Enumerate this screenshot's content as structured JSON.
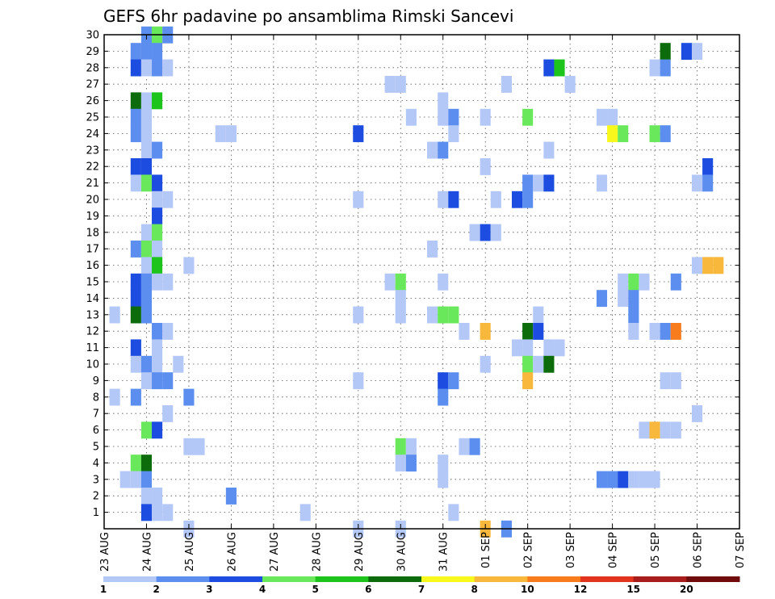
{
  "chart_data": {
    "type": "heatmap",
    "title": "GEFS 6hr padavine po ansamblima Rimski Sancevi",
    "xlabel": "",
    "ylabel": "",
    "x_range": [
      "2008-08-23 00",
      "2008-09-07 00"
    ],
    "x_step_hours": 6,
    "x_tick_labels": [
      "23 AUG",
      "24 AUG",
      "25 AUG",
      "26 AUG",
      "27 AUG",
      "28 AUG",
      "29 AUG",
      "30 AUG",
      "31 AUG",
      "01 SEP",
      "02 SEP",
      "03 SEP",
      "04 SEP",
      "05 SEP",
      "06 SEP",
      "07 SEP"
    ],
    "y_tick_labels": [
      "1",
      "2",
      "3",
      "4",
      "5",
      "6",
      "7",
      "8",
      "9",
      "10",
      "11",
      "12",
      "13",
      "14",
      "15",
      "16",
      "17",
      "18",
      "19",
      "20",
      "21",
      "22",
      "23",
      "24",
      "25",
      "26",
      "27",
      "28",
      "29",
      "30"
    ],
    "y_range": [
      0,
      30
    ],
    "grid": true,
    "colorbar": {
      "labels": [
        "1",
        "2",
        "3",
        "4",
        "5",
        "6",
        "7",
        "8",
        "10",
        "12",
        "15",
        "20"
      ],
      "colors": [
        "#b4c8f8",
        "#5c8ef0",
        "#1c4ce0",
        "#6ae85c",
        "#1cc41c",
        "#0c6c0c",
        "#f8f81c",
        "#f8b83c",
        "#f87c1c",
        "#e0341c",
        "#a81c1c",
        "#700c0c"
      ]
    },
    "cells": [
      {
        "t": "2008-08-23 06",
        "m": 13,
        "c": 1
      },
      {
        "t": "2008-08-23 06",
        "m": 8,
        "c": 1
      },
      {
        "t": "2008-08-23 12",
        "m": 3,
        "c": 1
      },
      {
        "t": "2008-08-23 18",
        "m": 29,
        "c": 2
      },
      {
        "t": "2008-08-23 18",
        "m": 28,
        "c": 3
      },
      {
        "t": "2008-08-23 18",
        "m": 26,
        "c": 6
      },
      {
        "t": "2008-08-23 18",
        "m": 25,
        "c": 2
      },
      {
        "t": "2008-08-23 18",
        "m": 24,
        "c": 2
      },
      {
        "t": "2008-08-23 18",
        "m": 22,
        "c": 3
      },
      {
        "t": "2008-08-23 18",
        "m": 21,
        "c": 1
      },
      {
        "t": "2008-08-23 18",
        "m": 17,
        "c": 2
      },
      {
        "t": "2008-08-23 18",
        "m": 15,
        "c": 3
      },
      {
        "t": "2008-08-23 18",
        "m": 14,
        "c": 3
      },
      {
        "t": "2008-08-23 18",
        "m": 13,
        "c": 6
      },
      {
        "t": "2008-08-23 18",
        "m": 11,
        "c": 3
      },
      {
        "t": "2008-08-23 18",
        "m": 10,
        "c": 1
      },
      {
        "t": "2008-08-23 18",
        "m": 8,
        "c": 2
      },
      {
        "t": "2008-08-23 18",
        "m": 4,
        "c": 4
      },
      {
        "t": "2008-08-23 18",
        "m": 3,
        "c": 1
      },
      {
        "t": "2008-08-24 00",
        "m": 30,
        "c": 2
      },
      {
        "t": "2008-08-24 00",
        "m": 29,
        "c": 2
      },
      {
        "t": "2008-08-24 00",
        "m": 28,
        "c": 1
      },
      {
        "t": "2008-08-24 00",
        "m": 26,
        "c": 1
      },
      {
        "t": "2008-08-24 00",
        "m": 25,
        "c": 1
      },
      {
        "t": "2008-08-24 00",
        "m": 24,
        "c": 1
      },
      {
        "t": "2008-08-24 00",
        "m": 23,
        "c": 1
      },
      {
        "t": "2008-08-24 00",
        "m": 22,
        "c": 3
      },
      {
        "t": "2008-08-24 00",
        "m": 21,
        "c": 4
      },
      {
        "t": "2008-08-24 00",
        "m": 18,
        "c": 1
      },
      {
        "t": "2008-08-24 00",
        "m": 17,
        "c": 4
      },
      {
        "t": "2008-08-24 00",
        "m": 16,
        "c": 1
      },
      {
        "t": "2008-08-24 00",
        "m": 15,
        "c": 2
      },
      {
        "t": "2008-08-24 00",
        "m": 14,
        "c": 2
      },
      {
        "t": "2008-08-24 00",
        "m": 13,
        "c": 2
      },
      {
        "t": "2008-08-24 00",
        "m": 10,
        "c": 2
      },
      {
        "t": "2008-08-24 00",
        "m": 9,
        "c": 1
      },
      {
        "t": "2008-08-24 00",
        "m": 6,
        "c": 4
      },
      {
        "t": "2008-08-24 00",
        "m": 4,
        "c": 6
      },
      {
        "t": "2008-08-24 00",
        "m": 3,
        "c": 2
      },
      {
        "t": "2008-08-24 00",
        "m": 2,
        "c": 1
      },
      {
        "t": "2008-08-24 00",
        "m": 1,
        "c": 3
      },
      {
        "t": "2008-08-24 06",
        "m": 30,
        "c": 4
      },
      {
        "t": "2008-08-24 06",
        "m": 29,
        "c": 2
      },
      {
        "t": "2008-08-24 06",
        "m": 28,
        "c": 2
      },
      {
        "t": "2008-08-24 06",
        "m": 26,
        "c": 5
      },
      {
        "t": "2008-08-24 06",
        "m": 23,
        "c": 2
      },
      {
        "t": "2008-08-24 06",
        "m": 21,
        "c": 3
      },
      {
        "t": "2008-08-24 06",
        "m": 20,
        "c": 1
      },
      {
        "t": "2008-08-24 06",
        "m": 19,
        "c": 3
      },
      {
        "t": "2008-08-24 06",
        "m": 18,
        "c": 4
      },
      {
        "t": "2008-08-24 06",
        "m": 17,
        "c": 1
      },
      {
        "t": "2008-08-24 06",
        "m": 16,
        "c": 5
      },
      {
        "t": "2008-08-24 06",
        "m": 15,
        "c": 1
      },
      {
        "t": "2008-08-24 06",
        "m": 12,
        "c": 2
      },
      {
        "t": "2008-08-24 06",
        "m": 11,
        "c": 1
      },
      {
        "t": "2008-08-24 06",
        "m": 10,
        "c": 1
      },
      {
        "t": "2008-08-24 06",
        "m": 9,
        "c": 2
      },
      {
        "t": "2008-08-24 06",
        "m": 6,
        "c": 3
      },
      {
        "t": "2008-08-24 06",
        "m": 2,
        "c": 1
      },
      {
        "t": "2008-08-24 06",
        "m": 1,
        "c": 1
      },
      {
        "t": "2008-08-24 12",
        "m": 30,
        "c": 2
      },
      {
        "t": "2008-08-24 12",
        "m": 28,
        "c": 1
      },
      {
        "t": "2008-08-24 12",
        "m": 20,
        "c": 1
      },
      {
        "t": "2008-08-24 12",
        "m": 15,
        "c": 1
      },
      {
        "t": "2008-08-24 12",
        "m": 12,
        "c": 1
      },
      {
        "t": "2008-08-24 12",
        "m": 9,
        "c": 2
      },
      {
        "t": "2008-08-24 12",
        "m": 7,
        "c": 1
      },
      {
        "t": "2008-08-24 12",
        "m": 1,
        "c": 1
      },
      {
        "t": "2008-08-24 18",
        "m": 10,
        "c": 1
      },
      {
        "t": "2008-08-25 00",
        "m": 16,
        "c": 1
      },
      {
        "t": "2008-08-25 00",
        "m": 8,
        "c": 2
      },
      {
        "t": "2008-08-25 00",
        "m": 5,
        "c": 1
      },
      {
        "t": "2008-08-25 00",
        "m": 0,
        "c": 1
      },
      {
        "t": "2008-08-25 06",
        "m": 5,
        "c": 1
      },
      {
        "t": "2008-08-25 18",
        "m": 24,
        "c": 1
      },
      {
        "t": "2008-08-26 00",
        "m": 24,
        "c": 1
      },
      {
        "t": "2008-08-26 00",
        "m": 2,
        "c": 2
      },
      {
        "t": "2008-08-27 18",
        "m": 1,
        "c": 1
      },
      {
        "t": "2008-08-29 00",
        "m": 24,
        "c": 3
      },
      {
        "t": "2008-08-29 00",
        "m": 20,
        "c": 1
      },
      {
        "t": "2008-08-29 00",
        "m": 13,
        "c": 1
      },
      {
        "t": "2008-08-29 00",
        "m": 9,
        "c": 1
      },
      {
        "t": "2008-08-29 00",
        "m": 0,
        "c": 1
      },
      {
        "t": "2008-08-29 18",
        "m": 27,
        "c": 1
      },
      {
        "t": "2008-08-29 18",
        "m": 15,
        "c": 1
      },
      {
        "t": "2008-08-30 00",
        "m": 27,
        "c": 1
      },
      {
        "t": "2008-08-30 00",
        "m": 15,
        "c": 4
      },
      {
        "t": "2008-08-30 00",
        "m": 14,
        "c": 1
      },
      {
        "t": "2008-08-30 00",
        "m": 13,
        "c": 1
      },
      {
        "t": "2008-08-30 00",
        "m": 5,
        "c": 4
      },
      {
        "t": "2008-08-30 00",
        "m": 4,
        "c": 1
      },
      {
        "t": "2008-08-30 00",
        "m": 0,
        "c": 1
      },
      {
        "t": "2008-08-30 06",
        "m": 25,
        "c": 1
      },
      {
        "t": "2008-08-30 06",
        "m": 5,
        "c": 1
      },
      {
        "t": "2008-08-30 06",
        "m": 4,
        "c": 2
      },
      {
        "t": "2008-08-30 18",
        "m": 23,
        "c": 1
      },
      {
        "t": "2008-08-30 18",
        "m": 17,
        "c": 1
      },
      {
        "t": "2008-08-30 18",
        "m": 13,
        "c": 1
      },
      {
        "t": "2008-08-31 00",
        "m": 26,
        "c": 1
      },
      {
        "t": "2008-08-31 00",
        "m": 25,
        "c": 1
      },
      {
        "t": "2008-08-31 00",
        "m": 23,
        "c": 2
      },
      {
        "t": "2008-08-31 00",
        "m": 20,
        "c": 1
      },
      {
        "t": "2008-08-31 00",
        "m": 15,
        "c": 1
      },
      {
        "t": "2008-08-31 00",
        "m": 13,
        "c": 4
      },
      {
        "t": "2008-08-31 00",
        "m": 9,
        "c": 3
      },
      {
        "t": "2008-08-31 00",
        "m": 8,
        "c": 2
      },
      {
        "t": "2008-08-31 00",
        "m": 4,
        "c": 1
      },
      {
        "t": "2008-08-31 00",
        "m": 3,
        "c": 1
      },
      {
        "t": "2008-08-31 06",
        "m": 25,
        "c": 2
      },
      {
        "t": "2008-08-31 06",
        "m": 24,
        "c": 1
      },
      {
        "t": "2008-08-31 06",
        "m": 20,
        "c": 3
      },
      {
        "t": "2008-08-31 06",
        "m": 13,
        "c": 4
      },
      {
        "t": "2008-08-31 06",
        "m": 9,
        "c": 2
      },
      {
        "t": "2008-08-31 06",
        "m": 1,
        "c": 1
      },
      {
        "t": "2008-08-31 12",
        "m": 12,
        "c": 1
      },
      {
        "t": "2008-08-31 12",
        "m": 5,
        "c": 1
      },
      {
        "t": "2008-08-31 18",
        "m": 18,
        "c": 1
      },
      {
        "t": "2008-08-31 18",
        "m": 5,
        "c": 2
      },
      {
        "t": "2008-09-01 00",
        "m": 25,
        "c": 1
      },
      {
        "t": "2008-09-01 00",
        "m": 22,
        "c": 1
      },
      {
        "t": "2008-09-01 00",
        "m": 18,
        "c": 3
      },
      {
        "t": "2008-09-01 00",
        "m": 12,
        "c": 8
      },
      {
        "t": "2008-09-01 00",
        "m": 10,
        "c": 1
      },
      {
        "t": "2008-09-01 00",
        "m": 0,
        "c": 8
      },
      {
        "t": "2008-09-01 06",
        "m": 20,
        "c": 1
      },
      {
        "t": "2008-09-01 06",
        "m": 18,
        "c": 1
      },
      {
        "t": "2008-09-01 12",
        "m": 27,
        "c": 1
      },
      {
        "t": "2008-09-01 12",
        "m": 0,
        "c": 2
      },
      {
        "t": "2008-09-01 18",
        "m": 20,
        "c": 3
      },
      {
        "t": "2008-09-01 18",
        "m": 11,
        "c": 1
      },
      {
        "t": "2008-09-02 00",
        "m": 25,
        "c": 4
      },
      {
        "t": "2008-09-02 00",
        "m": 21,
        "c": 2
      },
      {
        "t": "2008-09-02 00",
        "m": 20,
        "c": 2
      },
      {
        "t": "2008-09-02 00",
        "m": 12,
        "c": 6
      },
      {
        "t": "2008-09-02 00",
        "m": 11,
        "c": 1
      },
      {
        "t": "2008-09-02 00",
        "m": 10,
        "c": 4
      },
      {
        "t": "2008-09-02 00",
        "m": 9,
        "c": 8
      },
      {
        "t": "2008-09-02 06",
        "m": 21,
        "c": 1
      },
      {
        "t": "2008-09-02 06",
        "m": 13,
        "c": 1
      },
      {
        "t": "2008-09-02 06",
        "m": 12,
        "c": 3
      },
      {
        "t": "2008-09-02 06",
        "m": 10,
        "c": 1
      },
      {
        "t": "2008-09-02 12",
        "m": 28,
        "c": 3
      },
      {
        "t": "2008-09-02 12",
        "m": 23,
        "c": 1
      },
      {
        "t": "2008-09-02 12",
        "m": 21,
        "c": 3
      },
      {
        "t": "2008-09-02 12",
        "m": 11,
        "c": 1
      },
      {
        "t": "2008-09-02 12",
        "m": 10,
        "c": 6
      },
      {
        "t": "2008-09-02 18",
        "m": 28,
        "c": 5
      },
      {
        "t": "2008-09-02 18",
        "m": 11,
        "c": 1
      },
      {
        "t": "2008-09-03 00",
        "m": 27,
        "c": 1
      },
      {
        "t": "2008-09-03 18",
        "m": 25,
        "c": 1
      },
      {
        "t": "2008-09-03 18",
        "m": 21,
        "c": 1
      },
      {
        "t": "2008-09-03 18",
        "m": 14,
        "c": 2
      },
      {
        "t": "2008-09-03 18",
        "m": 3,
        "c": 2
      },
      {
        "t": "2008-09-04 00",
        "m": 25,
        "c": 1
      },
      {
        "t": "2008-09-04 00",
        "m": 24,
        "c": 7
      },
      {
        "t": "2008-09-04 00",
        "m": 3,
        "c": 2
      },
      {
        "t": "2008-09-04 06",
        "m": 24,
        "c": 4
      },
      {
        "t": "2008-09-04 06",
        "m": 15,
        "c": 1
      },
      {
        "t": "2008-09-04 06",
        "m": 14,
        "c": 1
      },
      {
        "t": "2008-09-04 06",
        "m": 3,
        "c": 3
      },
      {
        "t": "2008-09-04 12",
        "m": 15,
        "c": 4
      },
      {
        "t": "2008-09-04 12",
        "m": 14,
        "c": 2
      },
      {
        "t": "2008-09-04 12",
        "m": 13,
        "c": 2
      },
      {
        "t": "2008-09-04 12",
        "m": 12,
        "c": 1
      },
      {
        "t": "2008-09-04 12",
        "m": 3,
        "c": 1
      },
      {
        "t": "2008-09-04 18",
        "m": 15,
        "c": 1
      },
      {
        "t": "2008-09-04 18",
        "m": 6,
        "c": 1
      },
      {
        "t": "2008-09-04 18",
        "m": 3,
        "c": 1
      },
      {
        "t": "2008-09-05 00",
        "m": 28,
        "c": 1
      },
      {
        "t": "2008-09-05 00",
        "m": 24,
        "c": 4
      },
      {
        "t": "2008-09-05 00",
        "m": 12,
        "c": 1
      },
      {
        "t": "2008-09-05 00",
        "m": 6,
        "c": 8
      },
      {
        "t": "2008-09-05 00",
        "m": 3,
        "c": 1
      },
      {
        "t": "2008-09-05 06",
        "m": 29,
        "c": 6
      },
      {
        "t": "2008-09-05 06",
        "m": 28,
        "c": 2
      },
      {
        "t": "2008-09-05 06",
        "m": 24,
        "c": 2
      },
      {
        "t": "2008-09-05 06",
        "m": 12,
        "c": 2
      },
      {
        "t": "2008-09-05 06",
        "m": 9,
        "c": 1
      },
      {
        "t": "2008-09-05 06",
        "m": 6,
        "c": 1
      },
      {
        "t": "2008-09-05 12",
        "m": 15,
        "c": 2
      },
      {
        "t": "2008-09-05 12",
        "m": 12,
        "c": 9
      },
      {
        "t": "2008-09-05 12",
        "m": 9,
        "c": 1
      },
      {
        "t": "2008-09-05 12",
        "m": 6,
        "c": 1
      },
      {
        "t": "2008-09-05 18",
        "m": 29,
        "c": 3
      },
      {
        "t": "2008-09-06 00",
        "m": 29,
        "c": 1
      },
      {
        "t": "2008-09-06 00",
        "m": 21,
        "c": 1
      },
      {
        "t": "2008-09-06 00",
        "m": 16,
        "c": 1
      },
      {
        "t": "2008-09-06 00",
        "m": 7,
        "c": 1
      },
      {
        "t": "2008-09-06 06",
        "m": 22,
        "c": 3
      },
      {
        "t": "2008-09-06 06",
        "m": 21,
        "c": 2
      },
      {
        "t": "2008-09-06 06",
        "m": 16,
        "c": 8
      },
      {
        "t": "2008-09-06 12",
        "m": 16,
        "c": 8
      }
    ]
  }
}
